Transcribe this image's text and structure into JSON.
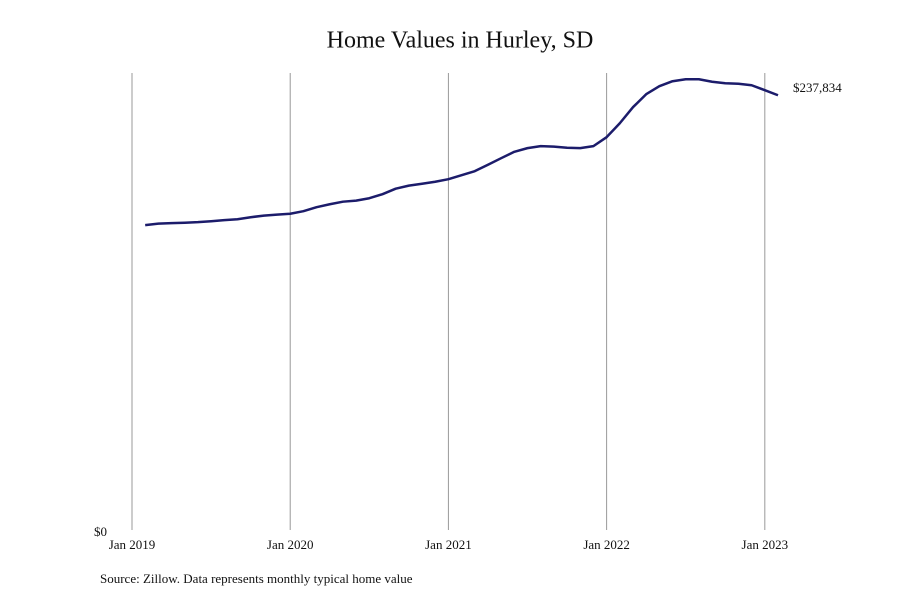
{
  "chart_data": {
    "type": "line",
    "title": "Home Values in Hurley, SD",
    "source": "Source: Zillow. Data represents monthly typical home value",
    "x": [
      "2019-02",
      "2019-03",
      "2019-04",
      "2019-05",
      "2019-06",
      "2019-07",
      "2019-08",
      "2019-09",
      "2019-10",
      "2019-11",
      "2019-12",
      "2020-01",
      "2020-02",
      "2020-03",
      "2020-04",
      "2020-05",
      "2020-06",
      "2020-07",
      "2020-08",
      "2020-09",
      "2020-10",
      "2020-11",
      "2020-12",
      "2021-01",
      "2021-02",
      "2021-03",
      "2021-04",
      "2021-05",
      "2021-06",
      "2021-07",
      "2021-08",
      "2021-09",
      "2021-10",
      "2021-11",
      "2021-12",
      "2022-01",
      "2022-02",
      "2022-03",
      "2022-04",
      "2022-05",
      "2022-06",
      "2022-07",
      "2022-08",
      "2022-09",
      "2022-10",
      "2022-11",
      "2022-12",
      "2023-01",
      "2023-02"
    ],
    "series": [
      {
        "name": "Home value",
        "color": "#1c1c6b",
        "values": [
          166800,
          167600,
          167900,
          168100,
          168400,
          168900,
          169500,
          170000,
          171100,
          172000,
          172500,
          173000,
          174400,
          176600,
          178200,
          179600,
          180200,
          181500,
          183700,
          186700,
          188400,
          189400,
          190500,
          191900,
          194100,
          196300,
          199800,
          203400,
          206900,
          208900,
          210000,
          209700,
          209100,
          208900,
          210000,
          214900,
          222500,
          231300,
          238400,
          242800,
          245500,
          246600,
          246600,
          245200,
          244400,
          244100,
          243300,
          240600,
          237834
        ],
        "value_labels": [
          null,
          null,
          null,
          null,
          null,
          null,
          null,
          null,
          null,
          null,
          null,
          null,
          null,
          null,
          null,
          null,
          null,
          null,
          null,
          null,
          null,
          null,
          null,
          null,
          null,
          null,
          null,
          null,
          null,
          null,
          null,
          null,
          null,
          null,
          null,
          null,
          null,
          null,
          null,
          null,
          null,
          null,
          null,
          null,
          null,
          null,
          null,
          null,
          "$237,834"
        ]
      }
    ],
    "xlim": [
      "2019-01",
      "2023-02"
    ],
    "xticks": [
      {
        "value": "2019-01",
        "label": "Jan 2019"
      },
      {
        "value": "2020-01",
        "label": "Jan 2020"
      },
      {
        "value": "2021-01",
        "label": "Jan 2021"
      },
      {
        "value": "2022-01",
        "label": "Jan 2022"
      },
      {
        "value": "2023-01",
        "label": "Jan 2023"
      }
    ],
    "ylim": [
      0,
      250000
    ],
    "yticks": [
      {
        "value": 0,
        "label": "$0"
      }
    ],
    "grid": "x"
  }
}
